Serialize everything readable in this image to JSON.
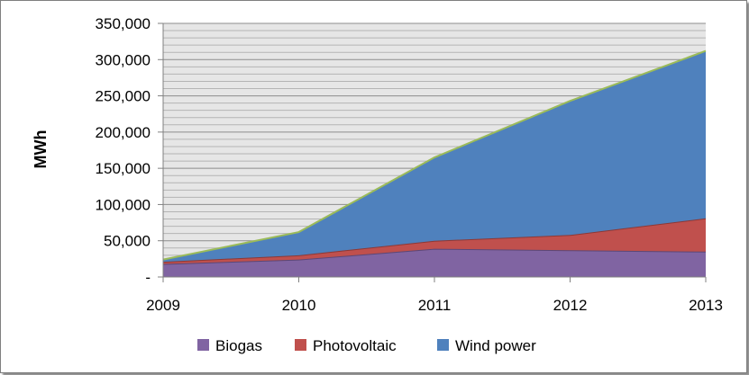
{
  "chart_data": {
    "type": "area",
    "stacked": true,
    "title": "",
    "xlabel": "",
    "ylabel": "MWh",
    "x": [
      "2009",
      "2010",
      "2011",
      "2012",
      "2013"
    ],
    "ylim": [
      0,
      350000
    ],
    "yticks": [
      0,
      50000,
      100000,
      150000,
      200000,
      250000,
      300000,
      350000
    ],
    "ytick_labels": [
      "-",
      "50,000",
      "100,000",
      "150,000",
      "200,000",
      "250,000",
      "300,000",
      "350,000"
    ],
    "grid": true,
    "legend_position": "bottom",
    "series": [
      {
        "name": "Biogas",
        "color": "#8064a2",
        "line_color": "#5c4776",
        "values": [
          18000,
          24000,
          39000,
          37000,
          35000
        ]
      },
      {
        "name": "Photovoltaic",
        "color": "#c0504d",
        "line_color": "#8c3836",
        "values": [
          3000,
          6000,
          11000,
          21000,
          46000
        ]
      },
      {
        "name": "Wind power",
        "color": "#4f81bd",
        "line_color": "#9bbb59",
        "values": [
          3000,
          32000,
          115000,
          185000,
          231000
        ]
      }
    ]
  }
}
